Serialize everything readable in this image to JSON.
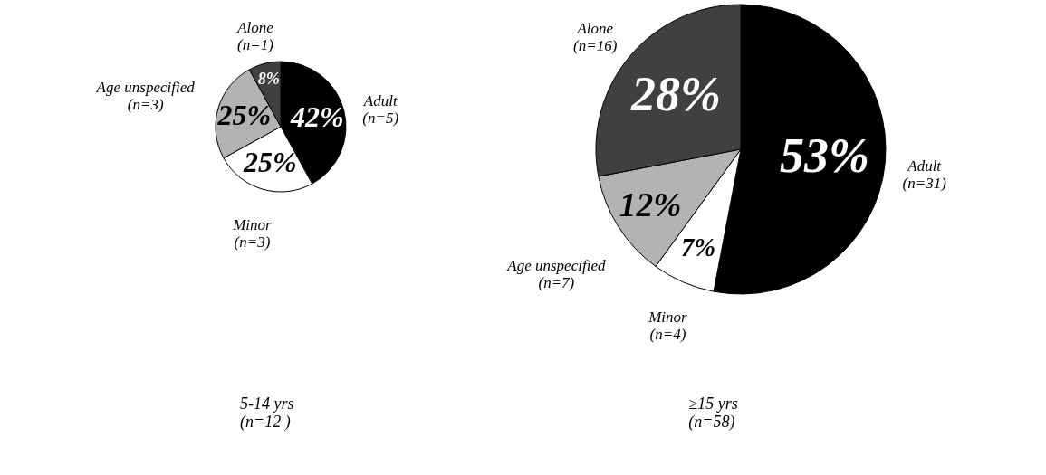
{
  "chart_data": [
    {
      "type": "pie",
      "title": "5-14 yrs\n(n=12 )",
      "categories": [
        "Adult\n(n=5)",
        "Minor\n(n=3)",
        "Age unspecified\n(n=3)",
        "Alone\n(n=1)"
      ],
      "values": [
        42,
        25,
        25,
        8
      ],
      "value_labels": [
        "42%",
        "25%",
        "25%",
        "8%"
      ],
      "colors": [
        "#000000",
        "#ffffff",
        "#b3b3b3",
        "#404040"
      ]
    },
    {
      "type": "pie",
      "title": "≥15 yrs\n(n=58)",
      "categories": [
        "Adult\n(n=31)",
        "Minor\n(n=4)",
        "Age unspecified\n(n=7)",
        "Alone\n(n=16)"
      ],
      "values": [
        53,
        7,
        12,
        28
      ],
      "value_labels": [
        "53%",
        "7%",
        "12%",
        "28%"
      ],
      "colors": [
        "#000000",
        "#ffffff",
        "#b3b3b3",
        "#404040"
      ]
    }
  ]
}
